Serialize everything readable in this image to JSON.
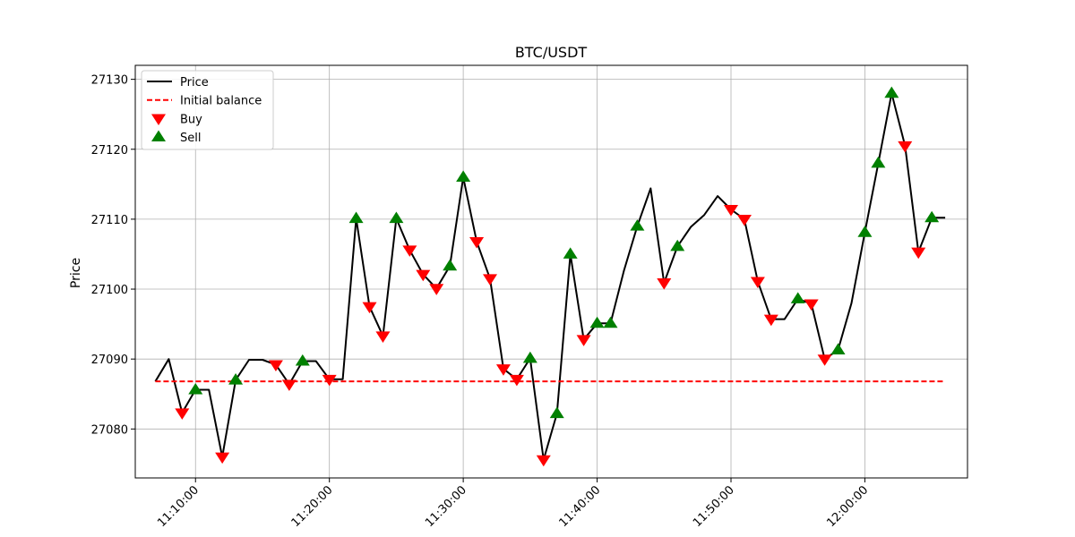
{
  "chart_data": {
    "type": "line",
    "title": "BTC/USDT",
    "xlabel": "",
    "ylabel": "Price",
    "xlim": [
      "11:05:30",
      "12:07:40"
    ],
    "ylim": [
      27073.0,
      27132.0
    ],
    "grid": true,
    "legend_position": "top-left",
    "x_ticks": [
      "11:10:00",
      "11:20:00",
      "11:30:00",
      "11:40:00",
      "11:50:00",
      "12:00:00"
    ],
    "y_ticks": [
      27080,
      27090,
      27100,
      27110,
      27120,
      27130
    ],
    "series": [
      {
        "name": "Price",
        "kind": "line",
        "color": "#000000",
        "x": [
          "11:07:00",
          "11:08:00",
          "11:09:00",
          "11:10:00",
          "11:11:00",
          "11:12:00",
          "11:13:00",
          "11:14:00",
          "11:15:00",
          "11:16:00",
          "11:17:00",
          "11:18:00",
          "11:19:00",
          "11:20:00",
          "11:21:00",
          "11:22:00",
          "11:23:00",
          "11:24:00",
          "11:25:00",
          "11:26:00",
          "11:27:00",
          "11:28:00",
          "11:29:00",
          "11:30:00",
          "11:31:00",
          "11:32:00",
          "11:33:00",
          "11:34:00",
          "11:35:00",
          "11:36:00",
          "11:37:00",
          "11:38:00",
          "11:39:00",
          "11:40:00",
          "11:41:00",
          "11:42:00",
          "11:43:00",
          "11:44:00",
          "11:45:00",
          "11:46:00",
          "11:47:00",
          "11:48:00",
          "11:49:00",
          "11:50:00",
          "11:51:00",
          "11:52:00",
          "11:53:00",
          "11:54:00",
          "11:55:00",
          "11:56:00",
          "11:57:00",
          "11:58:00",
          "11:59:00",
          "12:00:00",
          "12:01:00",
          "12:02:00",
          "12:03:00",
          "12:04:00",
          "12:05:00",
          "12:06:00"
        ],
        "values": [
          27086.8,
          27090.0,
          27082.3,
          27085.6,
          27085.6,
          27076.0,
          27087.0,
          27089.9,
          27089.9,
          27089.2,
          27086.4,
          27089.7,
          27089.7,
          27087.1,
          27087.1,
          27110.1,
          27097.5,
          27093.3,
          27110.1,
          27105.6,
          27102.1,
          27100.1,
          27103.3,
          27116.0,
          27106.8,
          27101.5,
          27088.6,
          27087.1,
          27090.1,
          27075.6,
          27082.2,
          27105.0,
          27092.8,
          27095.1,
          27095.1,
          27102.6,
          27109.0,
          27114.4,
          27100.9,
          27106.1,
          27108.9,
          27110.6,
          27113.3,
          27111.4,
          27110.0,
          27101.1,
          27095.7,
          27095.7,
          27098.6,
          27097.9,
          27090.0,
          27091.3,
          27098.0,
          27108.1,
          27118.0,
          27128.0,
          27120.5,
          27105.3,
          27110.2,
          27110.2
        ]
      },
      {
        "name": "Initial balance",
        "kind": "hline",
        "color": "#ff0000",
        "value": 27086.8,
        "x_range": [
          "11:07:00",
          "12:06:00"
        ]
      },
      {
        "name": "Buy",
        "kind": "scatter",
        "marker": "triangle-down",
        "color": "#ff0000",
        "x": [
          "11:09:00",
          "11:12:00",
          "11:16:00",
          "11:17:00",
          "11:20:00",
          "11:23:00",
          "11:24:00",
          "11:26:00",
          "11:27:00",
          "11:28:00",
          "11:31:00",
          "11:32:00",
          "11:33:00",
          "11:34:00",
          "11:36:00",
          "11:39:00",
          "11:45:00",
          "11:50:00",
          "11:51:00",
          "11:52:00",
          "11:53:00",
          "11:56:00",
          "11:57:00",
          "12:03:00",
          "12:04:00"
        ],
        "values": [
          27082.3,
          27076.0,
          27089.2,
          27086.4,
          27087.1,
          27097.5,
          27093.3,
          27105.6,
          27102.1,
          27100.1,
          27106.8,
          27101.5,
          27088.6,
          27087.1,
          27075.6,
          27092.8,
          27100.9,
          27111.4,
          27110.0,
          27101.1,
          27095.7,
          27097.9,
          27090.0,
          27120.5,
          27105.3
        ]
      },
      {
        "name": "Sell",
        "kind": "scatter",
        "marker": "triangle-up",
        "color": "#008000",
        "x": [
          "11:10:00",
          "11:13:00",
          "11:18:00",
          "11:22:00",
          "11:25:00",
          "11:29:00",
          "11:30:00",
          "11:35:00",
          "11:37:00",
          "11:38:00",
          "11:40:00",
          "11:41:00",
          "11:43:00",
          "11:46:00",
          "11:55:00",
          "11:58:00",
          "12:00:00",
          "12:01:00",
          "12:02:00",
          "12:05:00"
        ],
        "values": [
          27085.6,
          27087.0,
          27089.7,
          27110.1,
          27110.1,
          27103.3,
          27116.0,
          27090.1,
          27082.2,
          27105.0,
          27095.1,
          27095.1,
          27109.0,
          27106.1,
          27098.6,
          27091.3,
          27108.1,
          27118.0,
          27128.0,
          27110.2
        ]
      }
    ]
  }
}
